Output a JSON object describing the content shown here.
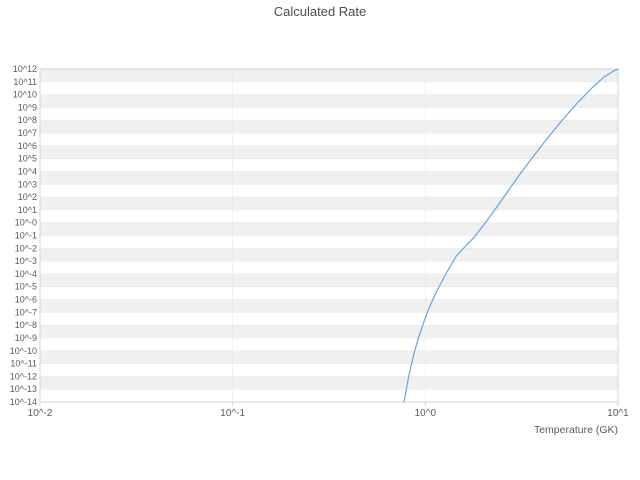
{
  "chart_data": {
    "type": "line",
    "title": "Calculated Rate",
    "xlabel": "Temperature (GK)",
    "ylabel": "",
    "x_scale": "log",
    "y_scale": "log",
    "xlim_log10": [
      -2,
      1
    ],
    "ylim_log10": [
      -14,
      12
    ],
    "grid": "horizontal-bands",
    "legend_position": "none",
    "x_ticks": [
      {
        "log10": -2,
        "label": "10^-2"
      },
      {
        "log10": -1,
        "label": "10^-1"
      },
      {
        "log10": 0,
        "label": "10^0"
      },
      {
        "log10": 1,
        "label": "10^1"
      }
    ],
    "y_ticks": [
      {
        "log10": 12,
        "label": "10^12"
      },
      {
        "log10": 11,
        "label": "10^11"
      },
      {
        "log10": 10,
        "label": "10^10"
      },
      {
        "log10": 9,
        "label": "10^9"
      },
      {
        "log10": 8,
        "label": "10^8"
      },
      {
        "log10": 7,
        "label": "10^7"
      },
      {
        "log10": 6,
        "label": "10^6"
      },
      {
        "log10": 5,
        "label": "10^5"
      },
      {
        "log10": 4,
        "label": "10^4"
      },
      {
        "log10": 3,
        "label": "10^3"
      },
      {
        "log10": 2,
        "label": "10^2"
      },
      {
        "log10": 1,
        "label": "10^1"
      },
      {
        "log10": 0,
        "label": "10^-0"
      },
      {
        "log10": -1,
        "label": "10^-1"
      },
      {
        "log10": -2,
        "label": "10^-2"
      },
      {
        "log10": -3,
        "label": "10^-3"
      },
      {
        "log10": -4,
        "label": "10^-4"
      },
      {
        "log10": -5,
        "label": "10^-5"
      },
      {
        "log10": -6,
        "label": "10^-6"
      },
      {
        "log10": -7,
        "label": "10^-7"
      },
      {
        "log10": -8,
        "label": "10^-8"
      },
      {
        "log10": -9,
        "label": "10^-9"
      },
      {
        "log10": -10,
        "label": "10^-10"
      },
      {
        "log10": -11,
        "label": "10^-11"
      },
      {
        "log10": -12,
        "label": "10^-12"
      },
      {
        "log10": -13,
        "label": "10^-13"
      },
      {
        "log10": -14,
        "label": "10^-14"
      }
    ],
    "colors": {
      "line": "#6ba3d9",
      "band": "#f0f0f0",
      "grid": "#e8e8e8",
      "border": "#d4d4d4",
      "tick_text": "#5a5a5a",
      "title_text": "#4d4d4d",
      "background": "#ffffff"
    },
    "series": [
      {
        "name": "calculated_rate",
        "x_gk": [
          0.775,
          0.82,
          0.87,
          0.92,
          0.98,
          1.05,
          1.15,
          1.3,
          1.45,
          1.6,
          1.8,
          2.1,
          2.5,
          3.0,
          3.6,
          4.3,
          5.2,
          6.2,
          7.3,
          8.5,
          9.5,
          10.0
        ],
        "log10_rate": [
          -14,
          -12,
          -10.3,
          -9.0,
          -7.8,
          -6.6,
          -5.3,
          -3.8,
          -2.6,
          -1.9,
          -1.1,
          0.2,
          1.8,
          3.5,
          5.1,
          6.6,
          8.1,
          9.4,
          10.5,
          11.4,
          11.85,
          12.0
        ]
      }
    ]
  }
}
